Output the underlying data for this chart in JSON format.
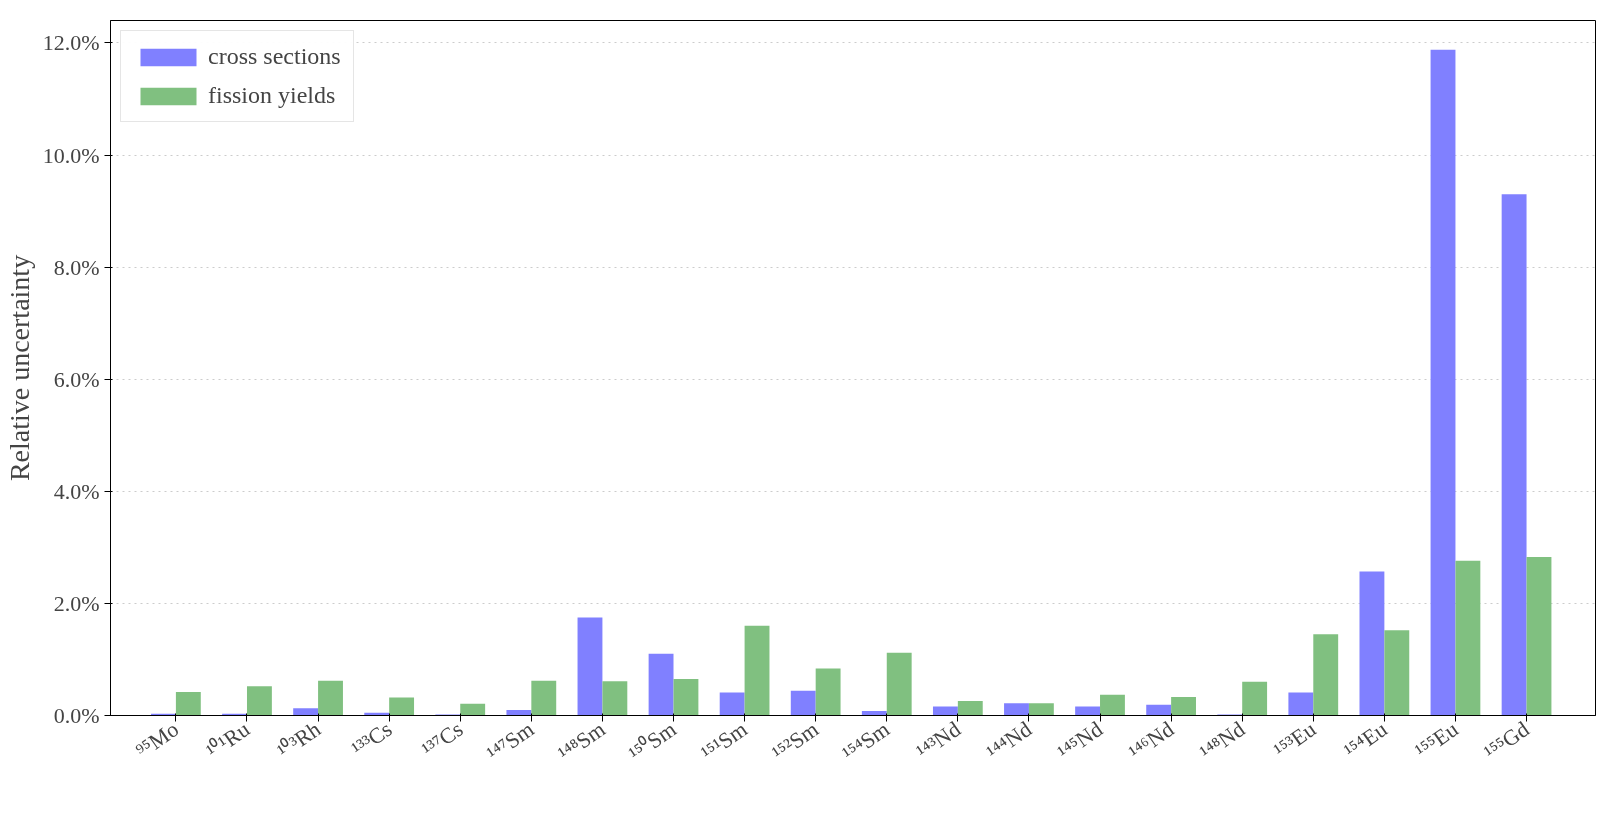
{
  "chart_data": {
    "type": "bar",
    "ylabel": "Relative uncertainty",
    "categories": [
      "⁹⁵Mo",
      "¹⁰¹Ru",
      "¹⁰³Rh",
      "¹³³Cs",
      "¹³⁷Cs",
      "¹⁴⁷Sm",
      "¹⁴⁸Sm",
      "¹⁵⁰Sm",
      "¹⁵¹Sm",
      "¹⁵²Sm",
      "¹⁵⁴Sm",
      "¹⁴³Nd",
      "¹⁴⁴Nd",
      "¹⁴⁵Nd",
      "¹⁴⁶Nd",
      "¹⁴⁸Nd",
      "¹⁵³Eu",
      "¹⁵⁴Eu",
      "¹⁵⁵Eu",
      "¹⁵⁵Gd"
    ],
    "series": [
      {
        "name": "cross sections",
        "color": "#8080ff",
        "values": [
          0.03,
          0.03,
          0.13,
          0.05,
          0.02,
          0.1,
          1.75,
          1.1,
          0.41,
          0.44,
          0.08,
          0.16,
          0.22,
          0.16,
          0.19,
          0.02,
          0.41,
          2.57,
          11.88,
          9.3
        ]
      },
      {
        "name": "fission yields",
        "color": "#80c080",
        "values": [
          0.42,
          0.52,
          0.62,
          0.32,
          0.21,
          0.62,
          0.61,
          0.65,
          1.6,
          0.84,
          1.12,
          0.26,
          0.22,
          0.37,
          0.33,
          0.6,
          1.45,
          1.52,
          2.76,
          2.83
        ]
      }
    ],
    "ylim": [
      0,
      12.4
    ],
    "yticks": [
      {
        "value": 0,
        "label": "0.0%"
      },
      {
        "value": 2,
        "label": "2.0%"
      },
      {
        "value": 4,
        "label": "4.0%"
      },
      {
        "value": 6,
        "label": "6.0%"
      },
      {
        "value": 8,
        "label": "8.0%"
      },
      {
        "value": 10,
        "label": "10.0%"
      },
      {
        "value": 12,
        "label": "12.0%"
      }
    ],
    "grid": "y",
    "legend": "top left"
  }
}
